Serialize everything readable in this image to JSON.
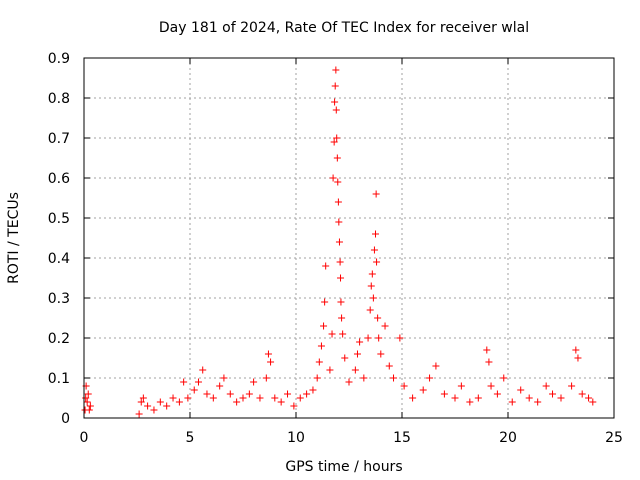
{
  "chart_data": {
    "type": "scatter",
    "title": "Day 181 of 2024, Rate Of TEC Index for receiver wlal",
    "xlabel": "GPS time / hours",
    "ylabel": "ROTI / TECUs",
    "xlim": [
      0,
      25
    ],
    "ylim": [
      0,
      0.9
    ],
    "x_ticks": [
      0,
      5,
      10,
      15,
      20,
      25
    ],
    "y_ticks": [
      0,
      0.1,
      0.2,
      0.3,
      0.4,
      0.5,
      0.6,
      0.7,
      0.8,
      0.9
    ],
    "grid": true,
    "marker": "+",
    "color": "#ff0000",
    "series": [
      {
        "name": "ROTI",
        "points": [
          [
            0.05,
            0.02
          ],
          [
            0.08,
            0.05
          ],
          [
            0.1,
            0.08
          ],
          [
            0.15,
            0.04
          ],
          [
            0.2,
            0.06
          ],
          [
            0.25,
            0.02
          ],
          [
            0.3,
            0.03
          ],
          [
            2.6,
            0.01
          ],
          [
            2.7,
            0.04
          ],
          [
            2.8,
            0.05
          ],
          [
            3.0,
            0.03
          ],
          [
            3.3,
            0.02
          ],
          [
            3.6,
            0.04
          ],
          [
            3.9,
            0.03
          ],
          [
            4.2,
            0.05
          ],
          [
            4.5,
            0.04
          ],
          [
            4.7,
            0.09
          ],
          [
            4.9,
            0.05
          ],
          [
            5.2,
            0.07
          ],
          [
            5.4,
            0.09
          ],
          [
            5.6,
            0.12
          ],
          [
            5.8,
            0.06
          ],
          [
            6.1,
            0.05
          ],
          [
            6.4,
            0.08
          ],
          [
            6.6,
            0.1
          ],
          [
            6.9,
            0.06
          ],
          [
            7.2,
            0.04
          ],
          [
            7.5,
            0.05
          ],
          [
            7.8,
            0.06
          ],
          [
            8.0,
            0.09
          ],
          [
            8.3,
            0.05
          ],
          [
            8.6,
            0.1
          ],
          [
            8.7,
            0.16
          ],
          [
            8.8,
            0.14
          ],
          [
            9.0,
            0.05
          ],
          [
            9.3,
            0.04
          ],
          [
            9.6,
            0.06
          ],
          [
            9.9,
            0.03
          ],
          [
            10.2,
            0.05
          ],
          [
            10.5,
            0.06
          ],
          [
            10.8,
            0.07
          ],
          [
            11.0,
            0.1
          ],
          [
            11.1,
            0.14
          ],
          [
            11.2,
            0.18
          ],
          [
            11.3,
            0.23
          ],
          [
            11.35,
            0.29
          ],
          [
            11.4,
            0.38
          ],
          [
            11.6,
            0.12
          ],
          [
            11.7,
            0.21
          ],
          [
            11.75,
            0.6
          ],
          [
            11.8,
            0.69
          ],
          [
            11.82,
            0.79
          ],
          [
            11.85,
            0.83
          ],
          [
            11.88,
            0.87
          ],
          [
            11.9,
            0.77
          ],
          [
            11.92,
            0.7
          ],
          [
            11.95,
            0.65
          ],
          [
            11.97,
            0.59
          ],
          [
            12.0,
            0.54
          ],
          [
            12.02,
            0.49
          ],
          [
            12.05,
            0.44
          ],
          [
            12.08,
            0.39
          ],
          [
            12.1,
            0.35
          ],
          [
            12.12,
            0.29
          ],
          [
            12.15,
            0.25
          ],
          [
            12.2,
            0.21
          ],
          [
            12.3,
            0.15
          ],
          [
            12.5,
            0.09
          ],
          [
            12.8,
            0.12
          ],
          [
            12.9,
            0.16
          ],
          [
            13.0,
            0.19
          ],
          [
            13.2,
            0.1
          ],
          [
            13.4,
            0.2
          ],
          [
            13.5,
            0.27
          ],
          [
            13.55,
            0.33
          ],
          [
            13.6,
            0.36
          ],
          [
            13.65,
            0.3
          ],
          [
            13.7,
            0.42
          ],
          [
            13.75,
            0.46
          ],
          [
            13.78,
            0.56
          ],
          [
            13.8,
            0.39
          ],
          [
            13.85,
            0.25
          ],
          [
            13.9,
            0.2
          ],
          [
            14.0,
            0.16
          ],
          [
            14.2,
            0.23
          ],
          [
            14.4,
            0.13
          ],
          [
            14.6,
            0.1
          ],
          [
            14.9,
            0.2
          ],
          [
            15.1,
            0.08
          ],
          [
            15.5,
            0.05
          ],
          [
            16.0,
            0.07
          ],
          [
            16.3,
            0.1
          ],
          [
            16.6,
            0.13
          ],
          [
            17.0,
            0.06
          ],
          [
            17.5,
            0.05
          ],
          [
            17.8,
            0.08
          ],
          [
            18.2,
            0.04
          ],
          [
            18.6,
            0.05
          ],
          [
            19.0,
            0.17
          ],
          [
            19.1,
            0.14
          ],
          [
            19.2,
            0.08
          ],
          [
            19.5,
            0.06
          ],
          [
            19.8,
            0.1
          ],
          [
            20.2,
            0.04
          ],
          [
            20.6,
            0.07
          ],
          [
            21.0,
            0.05
          ],
          [
            21.4,
            0.04
          ],
          [
            21.8,
            0.08
          ],
          [
            22.1,
            0.06
          ],
          [
            22.5,
            0.05
          ],
          [
            23.0,
            0.08
          ],
          [
            23.2,
            0.17
          ],
          [
            23.3,
            0.15
          ],
          [
            23.5,
            0.06
          ],
          [
            23.8,
            0.05
          ],
          [
            24.0,
            0.04
          ]
        ]
      }
    ]
  }
}
